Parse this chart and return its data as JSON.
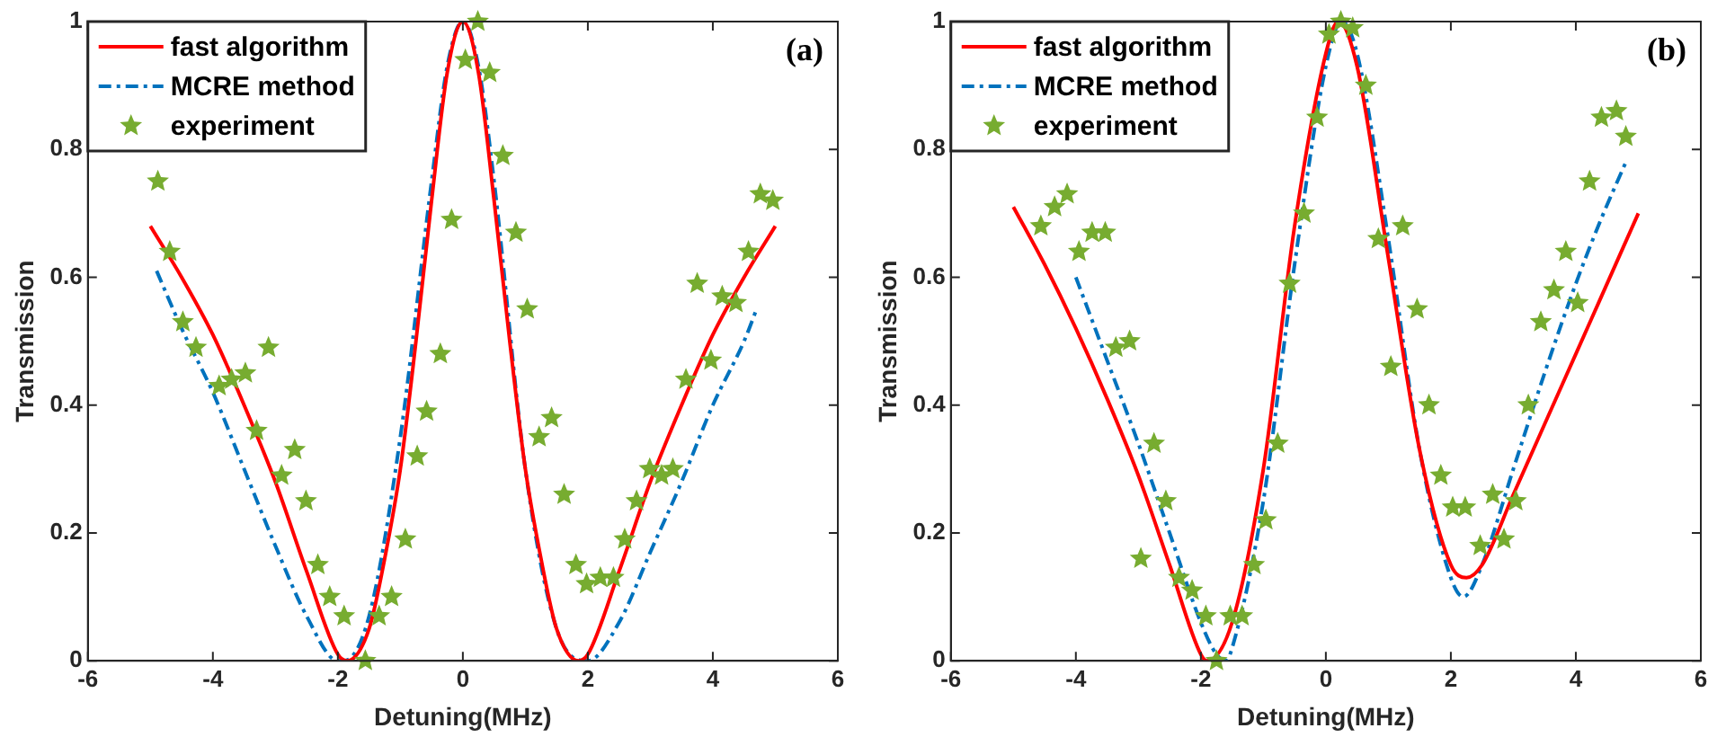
{
  "chart_data": [
    {
      "type": "line",
      "xlabel": "Detuning(MHz)",
      "ylabel": "Transmission",
      "xlim": [
        -6,
        6
      ],
      "xticks": [
        -6,
        -4,
        -2,
        0,
        2,
        4,
        6
      ],
      "ylim": [
        0,
        1
      ],
      "yticks": [
        0,
        0.2,
        0.4,
        0.6,
        0.8,
        1
      ],
      "grid": false,
      "legend": "top left",
      "annotations": [
        "(a)"
      ],
      "series": [
        {
          "name": "fast algorithm",
          "type": "line",
          "color": "#ff0000",
          "line_style": "solid",
          "marker": "none",
          "x": [
            -5,
            -4.5,
            -4,
            -3.5,
            -3,
            -2.5,
            -2,
            -1.85,
            -1.5,
            -1.25,
            -1,
            -0.75,
            -0.5,
            -0.25,
            0,
            0.25,
            0.5,
            0.75,
            1,
            1.25,
            1.5,
            1.85,
            2,
            2.5,
            3,
            3.5,
            4,
            4.5,
            5
          ],
          "values": [
            0.68,
            0.6,
            0.51,
            0.4,
            0.28,
            0.14,
            0.01,
            0,
            0.05,
            0.16,
            0.3,
            0.5,
            0.72,
            0.92,
            1,
            0.92,
            0.72,
            0.5,
            0.3,
            0.16,
            0.05,
            0,
            0.01,
            0.14,
            0.28,
            0.4,
            0.51,
            0.6,
            0.68
          ]
        },
        {
          "name": "MCRE method",
          "type": "line",
          "color": "#0072bd",
          "line_style": "dashdot",
          "marker": "none",
          "x": [
            -4.9,
            -4.5,
            -4,
            -3.5,
            -3,
            -2.5,
            -2,
            -1.9,
            -1.5,
            -1,
            -0.5,
            -0.25,
            0,
            0.25,
            0.5,
            1,
            1.5,
            2,
            2.5,
            3,
            3.5,
            4,
            4.5,
            4.7
          ],
          "values": [
            0.61,
            0.52,
            0.42,
            0.3,
            0.18,
            0.07,
            0,
            0,
            0.07,
            0.35,
            0.75,
            0.93,
            1,
            0.93,
            0.75,
            0.3,
            0.05,
            0,
            0.06,
            0.17,
            0.28,
            0.4,
            0.5,
            0.55
          ]
        },
        {
          "name": "experiment",
          "type": "scatter",
          "color": "#77ac30",
          "marker": "star",
          "x": [
            -4.88,
            -4.69,
            -4.48,
            -4.27,
            -3.9,
            -3.7,
            -3.48,
            -3.11,
            -3.3,
            -2.9,
            -2.69,
            -2.51,
            -2.32,
            -2.13,
            -1.9,
            -1.56,
            -1.34,
            -1.14,
            -0.92,
            -0.73,
            -0.58,
            -0.36,
            -0.18,
            0.04,
            0.24,
            0.43,
            0.64,
            0.85,
            1.03,
            1.22,
            1.42,
            1.62,
            1.81,
            1.98,
            2.2,
            2.41,
            2.59,
            2.78,
            2.99,
            3.18,
            3.36,
            3.57,
            3.75,
            3.97,
            4.15,
            4.37,
            4.57,
            4.76,
            4.96
          ],
          "values": [
            0.75,
            0.64,
            0.53,
            0.49,
            0.43,
            0.44,
            0.45,
            0.49,
            0.36,
            0.29,
            0.33,
            0.25,
            0.15,
            0.1,
            0.07,
            0,
            0.07,
            0.1,
            0.19,
            0.32,
            0.39,
            0.48,
            0.69,
            0.94,
            1,
            0.92,
            0.79,
            0.67,
            0.55,
            0.35,
            0.38,
            0.26,
            0.15,
            0.12,
            0.13,
            0.13,
            0.19,
            0.25,
            0.3,
            0.29,
            0.3,
            0.44,
            0.59,
            0.47,
            0.57,
            0.56,
            0.64,
            0.73,
            0.72
          ]
        }
      ]
    },
    {
      "type": "line",
      "xlabel": "Detuning(MHz)",
      "ylabel": "Transmission",
      "xlim": [
        -6,
        6
      ],
      "xticks": [
        -6,
        -4,
        -2,
        0,
        2,
        4,
        6
      ],
      "ylim": [
        0,
        1
      ],
      "yticks": [
        0,
        0.2,
        0.4,
        0.6,
        0.8,
        1
      ],
      "grid": false,
      "legend": "top left",
      "annotations": [
        "(b)"
      ],
      "series": [
        {
          "name": "fast algorithm",
          "type": "line",
          "color": "#ff0000",
          "line_style": "solid",
          "marker": "none",
          "x": [
            -5,
            -4.5,
            -4,
            -3.5,
            -3,
            -2.5,
            -2,
            -1.9,
            -1.5,
            -1,
            -0.5,
            0,
            0.2,
            0.5,
            1,
            1.5,
            2,
            2.25,
            2.5,
            3,
            3.5,
            4,
            4.5,
            5
          ],
          "values": [
            0.71,
            0.62,
            0.52,
            0.41,
            0.29,
            0.15,
            0.01,
            0,
            0.06,
            0.3,
            0.68,
            0.95,
            1,
            0.93,
            0.63,
            0.33,
            0.15,
            0.13,
            0.15,
            0.26,
            0.37,
            0.48,
            0.59,
            0.7
          ]
        },
        {
          "name": "MCRE method",
          "type": "line",
          "color": "#0072bd",
          "line_style": "dashdot",
          "marker": "none",
          "x": [
            -4,
            -3.5,
            -3,
            -2.5,
            -2,
            -1.75,
            -1.6,
            -1.5,
            -1,
            -0.5,
            0,
            0.25,
            0.5,
            1,
            1.5,
            2,
            2.2,
            2.5,
            3,
            3.5,
            4,
            4.4,
            4.8
          ],
          "values": [
            0.6,
            0.47,
            0.34,
            0.2,
            0.06,
            0.01,
            0,
            0.02,
            0.25,
            0.62,
            0.93,
            1,
            0.95,
            0.66,
            0.33,
            0.13,
            0.1,
            0.15,
            0.3,
            0.45,
            0.59,
            0.69,
            0.78
          ]
        },
        {
          "name": "experiment",
          "type": "scatter",
          "color": "#77ac30",
          "marker": "star",
          "x": [
            -4.56,
            -4.34,
            -4.14,
            -3.95,
            -3.74,
            -3.53,
            -3.36,
            -3.14,
            -2.96,
            -2.75,
            -2.56,
            -2.35,
            -2.14,
            -1.92,
            -1.75,
            -1.53,
            -1.34,
            -1.15,
            -0.96,
            -0.77,
            -0.58,
            -0.35,
            -0.14,
            0.05,
            0.24,
            0.43,
            0.64,
            0.84,
            1.04,
            1.23,
            1.46,
            1.65,
            1.84,
            2.03,
            2.23,
            2.47,
            2.67,
            2.85,
            3.04,
            3.24,
            3.44,
            3.65,
            3.84,
            4.03,
            4.22,
            4.41,
            4.65,
            4.8
          ],
          "values": [
            0.68,
            0.71,
            0.73,
            0.64,
            0.67,
            0.67,
            0.49,
            0.5,
            0.16,
            0.34,
            0.25,
            0.13,
            0.11,
            0.07,
            0,
            0.07,
            0.07,
            0.15,
            0.22,
            0.34,
            0.59,
            0.7,
            0.85,
            0.98,
            1,
            0.99,
            0.9,
            0.66,
            0.46,
            0.68,
            0.55,
            0.4,
            0.29,
            0.24,
            0.24,
            0.18,
            0.26,
            0.19,
            0.25,
            0.4,
            0.53,
            0.58,
            0.64,
            0.56,
            0.75,
            0.85,
            0.86,
            0.82
          ]
        }
      ]
    }
  ]
}
